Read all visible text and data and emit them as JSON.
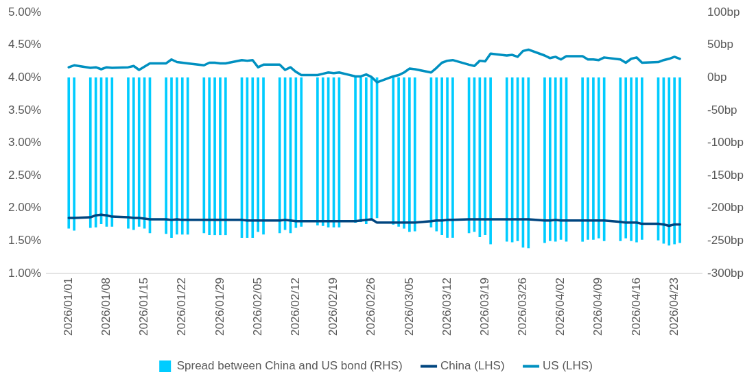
{
  "chart_data": {
    "type": "bar",
    "legend": "bottom",
    "x": [
      "2026-01-01",
      "2026-01-02",
      "2026-01-05",
      "2026-01-06",
      "2026-01-07",
      "2026-01-08",
      "2026-01-09",
      "2026-01-12",
      "2026-01-13",
      "2026-01-14",
      "2026-01-15",
      "2026-01-16",
      "2026-01-19",
      "2026-01-20",
      "2026-01-21",
      "2026-01-22",
      "2026-01-23",
      "2026-01-26",
      "2026-01-27",
      "2026-01-28",
      "2026-01-29",
      "2026-01-30",
      "2026-02-02",
      "2026-02-03",
      "2026-02-04",
      "2026-02-05",
      "2026-02-06",
      "2026-02-09",
      "2026-02-10",
      "2026-02-11",
      "2026-02-12",
      "2026-02-13",
      "2026-02-16",
      "2026-02-17",
      "2026-02-18",
      "2026-02-19",
      "2026-02-20",
      "2026-02-23",
      "2026-02-24",
      "2026-02-25",
      "2026-02-26",
      "2026-02-27",
      "2026-03-02",
      "2026-03-03",
      "2026-03-04",
      "2026-03-05",
      "2026-03-06",
      "2026-03-09",
      "2026-03-10",
      "2026-03-11",
      "2026-03-12",
      "2026-03-13",
      "2026-03-16",
      "2026-03-17",
      "2026-03-18",
      "2026-03-19",
      "2026-03-20",
      "2026-03-23",
      "2026-03-24",
      "2026-03-25",
      "2026-03-26",
      "2026-03-27",
      "2026-03-30",
      "2026-03-31",
      "2026-04-01",
      "2026-04-02",
      "2026-04-03",
      "2026-04-06",
      "2026-04-07",
      "2026-04-08",
      "2026-04-09",
      "2026-04-10",
      "2026-04-13",
      "2026-04-14",
      "2026-04-15",
      "2026-04-16",
      "2026-04-17",
      "2026-04-20",
      "2026-04-21",
      "2026-04-22",
      "2026-04-23",
      "2026-04-24"
    ],
    "xlim": [
      "2025-12-31T12:00",
      "2026-04-24T12:00"
    ],
    "xticks": [
      {
        "value": "2026-01-01",
        "label": "2026/01/01"
      },
      {
        "value": "2026-01-08",
        "label": "2026/01/08"
      },
      {
        "value": "2026-01-15",
        "label": "2026/01/15"
      },
      {
        "value": "2026-01-22",
        "label": "2026/01/22"
      },
      {
        "value": "2026-01-29",
        "label": "2026/01/29"
      },
      {
        "value": "2026-02-05",
        "label": "2026/02/05"
      },
      {
        "value": "2026-02-12",
        "label": "2026/02/12"
      },
      {
        "value": "2026-02-19",
        "label": "2026/02/19"
      },
      {
        "value": "2026-02-26",
        "label": "2026/02/26"
      },
      {
        "value": "2026-03-05",
        "label": "2026/03/05"
      },
      {
        "value": "2026-03-12",
        "label": "2026/03/12"
      },
      {
        "value": "2026-03-19",
        "label": "2026/03/19"
      },
      {
        "value": "2026-03-26",
        "label": "2026/03/26"
      },
      {
        "value": "2026-04-02",
        "label": "2026/04/02"
      },
      {
        "value": "2026-04-09",
        "label": "2026/04/09"
      },
      {
        "value": "2026-04-16",
        "label": "2026/04/16"
      },
      {
        "value": "2026-04-23",
        "label": "2026/04/23"
      }
    ],
    "ylim": [
      1,
      5
    ],
    "yticks": [
      {
        "value": 1,
        "label": "1.00%"
      },
      {
        "value": 1.5,
        "label": "1.50%"
      },
      {
        "value": 2,
        "label": "2.00%"
      },
      {
        "value": 2.5,
        "label": "2.50%"
      },
      {
        "value": 3,
        "label": "3.00%"
      },
      {
        "value": 3.5,
        "label": "3.50%"
      },
      {
        "value": 4,
        "label": "4.00%"
      },
      {
        "value": 4.5,
        "label": "4.50%"
      },
      {
        "value": 5,
        "label": "5.00%"
      }
    ],
    "y2lim": [
      -300,
      100
    ],
    "y2ticks": [
      {
        "value": -300,
        "label": "-300bp"
      },
      {
        "value": -250,
        "label": "-250bp"
      },
      {
        "value": -200,
        "label": "-200bp"
      },
      {
        "value": -150,
        "label": "-150bp"
      },
      {
        "value": -100,
        "label": "-100bp"
      },
      {
        "value": -50,
        "label": "-50bp"
      },
      {
        "value": 0,
        "label": "0bp"
      },
      {
        "value": 50,
        "label": "50bp"
      },
      {
        "value": 100,
        "label": "100bp"
      }
    ],
    "series": [
      {
        "name": "Spread between China and US bond (RHS)",
        "axis": "y2",
        "color": "#00ccff",
        "values": [
          -231,
          -234,
          -230,
          -229,
          -224,
          -228,
          -228,
          -231,
          -233,
          -228,
          -231,
          -238,
          -239,
          -245,
          -240,
          -240,
          -240,
          -238,
          -241,
          -241,
          -241,
          -241,
          -245,
          -245,
          -245,
          -236,
          -240,
          -238,
          -233,
          -238,
          -230,
          -228,
          -226,
          -227,
          -229,
          -229,
          -229,
          -222,
          -221,
          -224,
          -218,
          -215,
          -225,
          -228,
          -231,
          -236,
          -235,
          -229,
          -235,
          -241,
          -245,
          -245,
          -238,
          -236,
          -244,
          -241,
          -255,
          -251,
          -252,
          -250,
          -260,
          -261,
          -253,
          -250,
          -251,
          -248,
          -251,
          -251,
          -248,
          -248,
          -246,
          -250,
          -250,
          -246,
          -250,
          -252,
          -248,
          -249,
          -254,
          -257,
          -255,
          -253
        ]
      },
      {
        "name": "China (LHS)",
        "type": "line",
        "axis": "y",
        "color": "#00457f",
        "values": [
          1.85,
          1.85,
          1.86,
          1.89,
          1.9,
          1.89,
          1.87,
          1.86,
          1.85,
          1.85,
          1.84,
          1.83,
          1.83,
          1.82,
          1.83,
          1.82,
          1.82,
          1.82,
          1.82,
          1.82,
          1.82,
          1.82,
          1.82,
          1.81,
          1.81,
          1.81,
          1.81,
          1.81,
          1.82,
          1.81,
          1.8,
          1.8,
          1.8,
          1.8,
          1.8,
          1.8,
          1.8,
          1.8,
          1.81,
          1.82,
          1.83,
          1.78,
          1.78,
          1.78,
          1.78,
          1.78,
          1.78,
          1.8,
          1.81,
          1.81,
          1.82,
          1.82,
          1.83,
          1.83,
          1.83,
          1.83,
          1.83,
          1.83,
          1.83,
          1.83,
          1.83,
          1.83,
          1.81,
          1.81,
          1.82,
          1.81,
          1.81,
          1.81,
          1.81,
          1.81,
          1.81,
          1.81,
          1.79,
          1.78,
          1.78,
          1.78,
          1.76,
          1.76,
          1.75,
          1.73,
          1.75,
          1.75
        ]
      },
      {
        "name": "US (LHS)",
        "type": "line",
        "axis": "y",
        "color": "#0090c0",
        "values": [
          4.16,
          4.19,
          4.15,
          4.16,
          4.13,
          4.16,
          4.15,
          4.16,
          4.18,
          4.12,
          4.17,
          4.22,
          4.22,
          4.28,
          4.24,
          4.23,
          4.22,
          4.19,
          4.23,
          4.23,
          4.22,
          4.22,
          4.27,
          4.26,
          4.27,
          4.16,
          4.2,
          4.2,
          4.12,
          4.16,
          4.09,
          4.04,
          4.04,
          4.06,
          4.08,
          4.07,
          4.08,
          4.02,
          4.02,
          4.05,
          4.01,
          3.93,
          4.02,
          4.04,
          4.08,
          4.14,
          4.13,
          4.08,
          4.15,
          4.23,
          4.26,
          4.27,
          4.2,
          4.18,
          4.26,
          4.25,
          4.37,
          4.34,
          4.35,
          4.32,
          4.41,
          4.43,
          4.34,
          4.3,
          4.32,
          4.28,
          4.33,
          4.33,
          4.28,
          4.28,
          4.27,
          4.31,
          4.28,
          4.23,
          4.29,
          4.31,
          4.23,
          4.24,
          4.27,
          4.29,
          4.32,
          4.29
        ]
      }
    ]
  }
}
